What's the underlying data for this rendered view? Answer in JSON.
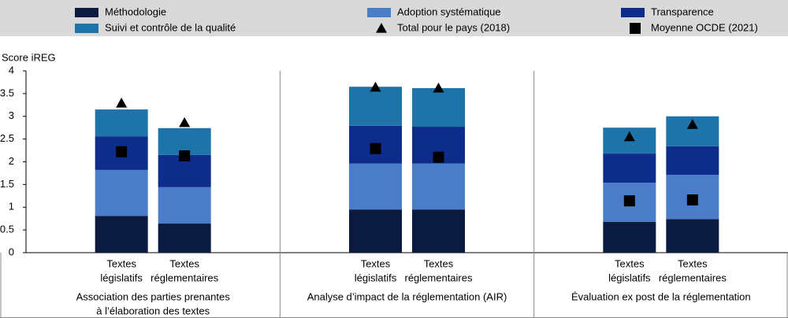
{
  "chart_data": {
    "type": "stacked-bar",
    "y_label": "Score iREG",
    "ylim": [
      0,
      4
    ],
    "yticks": [
      0,
      0.5,
      1,
      1.5,
      2,
      2.5,
      3,
      3.5,
      4
    ],
    "groups": [
      [
        "Association des parties prenantes",
        "à l’élaboration des textes"
      ],
      [
        "Analyse d’impact de la réglementation (AIR)"
      ],
      [
        "Évaluation ex post de la réglementation"
      ]
    ],
    "categories": [
      [
        "Textes",
        "législatifs"
      ],
      [
        "Textes",
        "réglementaires"
      ],
      [
        "Textes",
        "législatifs"
      ],
      [
        "Textes",
        "réglementaires"
      ],
      [
        "Textes",
        "législatifs"
      ],
      [
        "Textes",
        "réglementaires"
      ]
    ],
    "series": [
      {
        "name": "Méthodologie",
        "color": "#0b1a3f",
        "values": [
          0.81,
          0.64,
          0.95,
          0.95,
          0.68,
          0.74
        ]
      },
      {
        "name": "Adoption systématique",
        "color": "#4a7cc7",
        "values": [
          1.01,
          0.8,
          1.01,
          1.01,
          0.86,
          0.97
        ]
      },
      {
        "name": "Transparence",
        "color": "#0e2d8a",
        "values": [
          0.74,
          0.71,
          0.83,
          0.81,
          0.64,
          0.63
        ]
      },
      {
        "name": "Suivi et contrôle de la qualité",
        "color": "#1e73a8",
        "values": [
          0.59,
          0.59,
          0.86,
          0.85,
          0.57,
          0.66
        ]
      }
    ],
    "markers": [
      {
        "name": "Total pour le pays (2018)",
        "marker": "triangle",
        "color": "#000000",
        "values": [
          3.29,
          2.86,
          3.64,
          3.62,
          2.55,
          2.82
        ]
      },
      {
        "name": "Moyenne OCDE (2021)",
        "marker": "square",
        "color": "#000000",
        "values": [
          2.22,
          2.13,
          2.29,
          2.1,
          1.14,
          1.16
        ]
      }
    ]
  }
}
